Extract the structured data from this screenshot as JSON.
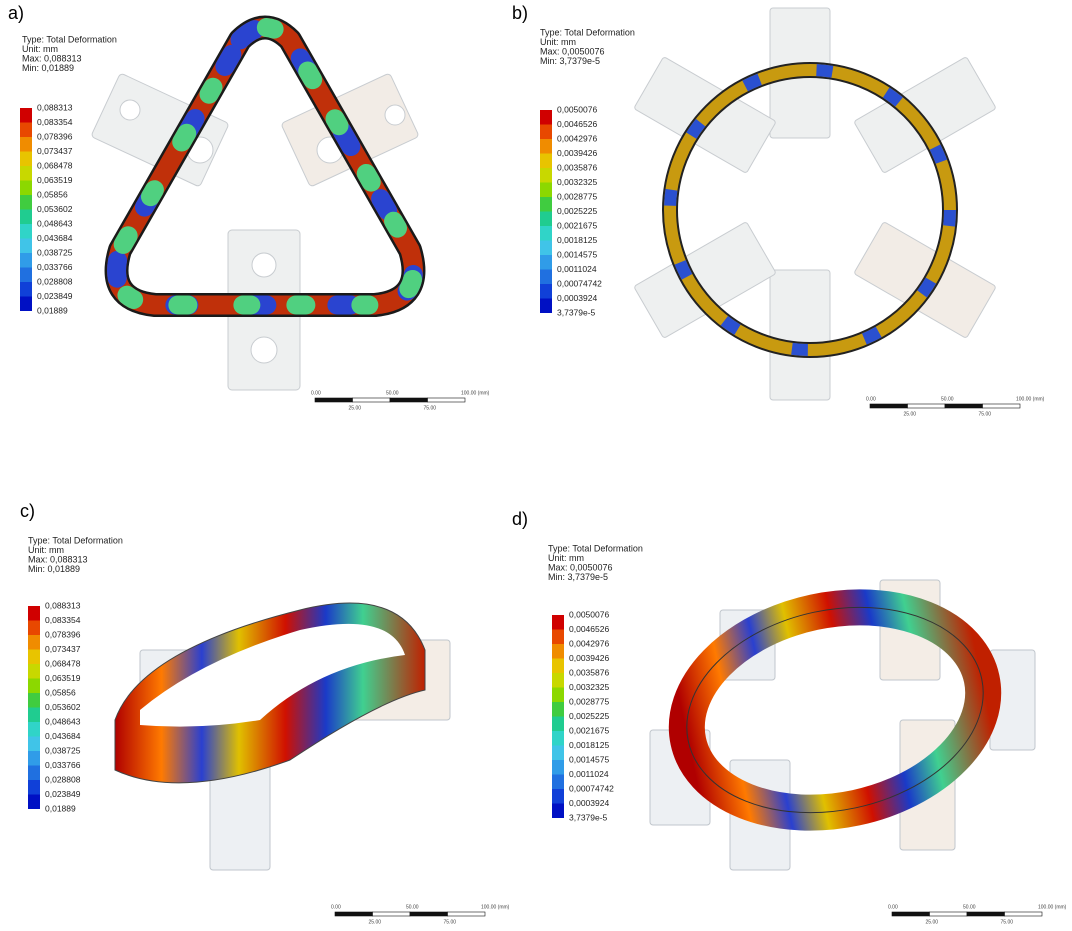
{
  "panels": [
    {
      "label": "a)",
      "type": "Type: Total Deformation",
      "unit": "Unit: mm",
      "max": "Max: 0,088313",
      "min": "Min: 0,01889",
      "legend": [
        "0,088313",
        "0,083354",
        "0,078396",
        "0,073437",
        "0,068478",
        "0,063519",
        "0,05856",
        "0,053602",
        "0,048643",
        "0,043684",
        "0,038725",
        "0,033766",
        "0,028808",
        "0,023849",
        "0,01889"
      ],
      "scale": [
        "0.00",
        "50.00",
        "100.00 (mm)",
        "25.00",
        "75.00"
      ]
    },
    {
      "label": "b)",
      "type": "Type: Total Deformation",
      "unit": "Unit: mm",
      "max": "Max: 0,0050076",
      "min": "Min: 3,7379e-5",
      "legend": [
        "0,0050076",
        "0,0046526",
        "0,0042976",
        "0,0039426",
        "0,0035876",
        "0,0032325",
        "0,0028775",
        "0,0025225",
        "0,0021675",
        "0,0018125",
        "0,0014575",
        "0,0011024",
        "0,00074742",
        "0,0003924",
        "3,7379e-5"
      ],
      "scale": [
        "0.00",
        "50.00",
        "100.00 (mm)",
        "25.00",
        "75.00"
      ]
    },
    {
      "label": "c)",
      "type": "Type: Total Deformation",
      "unit": "Unit: mm",
      "max": "Max: 0,088313",
      "min": "Min: 0,01889",
      "legend": [
        "0,088313",
        "0,083354",
        "0,078396",
        "0,073437",
        "0,068478",
        "0,063519",
        "0,05856",
        "0,053602",
        "0,048643",
        "0,043684",
        "0,038725",
        "0,033766",
        "0,028808",
        "0,023849",
        "0,01889"
      ],
      "scale": [
        "0.00",
        "50.00",
        "100.00 (mm)",
        "25.00",
        "75.00"
      ]
    },
    {
      "label": "d)",
      "type": "Type: Total Deformation",
      "unit": "Unit: mm",
      "max": "Max: 0,0050076",
      "min": "Min: 3,7379e-5",
      "legend": [
        "0,0050076",
        "0,0046526",
        "0,0042976",
        "0,0039426",
        "0,0035876",
        "0,0032325",
        "0,0028775",
        "0,0025225",
        "0,0021675",
        "0,0018125",
        "0,0014575",
        "0,0011024",
        "0,00074742",
        "0,0003924",
        "3,7379e-5"
      ],
      "scale": [
        "0.00",
        "50.00",
        "100.00 (mm)",
        "25.00",
        "75.00"
      ]
    }
  ]
}
